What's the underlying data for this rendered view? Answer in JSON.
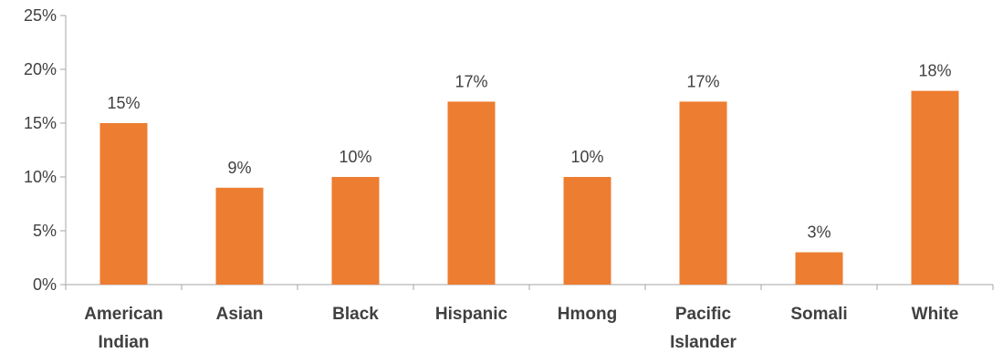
{
  "chart_data": {
    "type": "bar",
    "title": "",
    "xlabel": "",
    "ylabel": "",
    "categories": [
      "American Indian",
      "Asian",
      "Black",
      "Hispanic",
      "Hmong",
      "Pacific Islander",
      "Somali",
      "White"
    ],
    "values": [
      15,
      9,
      10,
      17,
      10,
      17,
      3,
      18
    ],
    "data_labels": [
      "15%",
      "9%",
      "10%",
      "17%",
      "10%",
      "17%",
      "3%",
      "18%"
    ],
    "ylim": [
      0,
      25
    ],
    "yticks": [
      0,
      5,
      10,
      15,
      20,
      25
    ],
    "ytick_labels": [
      "0%",
      "5%",
      "10%",
      "15%",
      "20%",
      "25%"
    ],
    "grid": false,
    "legend": "none",
    "bar_color": "#ED7D31",
    "axis_color": "#A6A6A6",
    "text_color": "#404040"
  }
}
